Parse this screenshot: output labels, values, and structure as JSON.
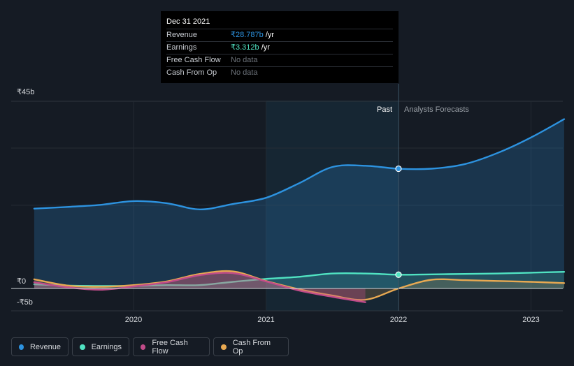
{
  "chart_data": {
    "type": "area",
    "title": "",
    "currency": "₹",
    "x_ticks": [
      "2020",
      "2021",
      "2022",
      "2023"
    ],
    "y_ticks": [
      "₹45b",
      "₹0",
      "-₹5b"
    ],
    "y_tick_values": [
      45,
      0,
      -5
    ],
    "ylim": [
      -5,
      45
    ],
    "past_label": "Past",
    "forecast_label": "Analysts Forecasts",
    "past_end": 2022.0,
    "highlight_start": 2021.0,
    "series": [
      {
        "name": "Revenue",
        "color": "#2d93e0",
        "x": [
          2019.25,
          2019.5,
          2019.75,
          2020.0,
          2020.25,
          2020.5,
          2020.75,
          2021.0,
          2021.25,
          2021.5,
          2021.75,
          2022.0,
          2022.25,
          2022.5,
          2022.75,
          2023.0,
          2023.25
        ],
        "values": [
          19.2,
          19.6,
          20.1,
          21.0,
          20.5,
          19.0,
          20.3,
          21.8,
          25.3,
          29.2,
          29.5,
          28.787,
          28.8,
          29.9,
          32.6,
          36.3,
          40.7
        ]
      },
      {
        "name": "Earnings",
        "color": "#50e3c2",
        "x": [
          2019.25,
          2019.5,
          2019.75,
          2020.0,
          2020.25,
          2020.5,
          2020.75,
          2021.0,
          2021.25,
          2021.5,
          2021.75,
          2022.0,
          2022.25,
          2022.5,
          2022.75,
          2023.0,
          2023.25
        ],
        "values": [
          1.0,
          0.7,
          0.6,
          0.6,
          0.8,
          0.8,
          1.6,
          2.3,
          2.8,
          3.6,
          3.6,
          3.312,
          3.4,
          3.5,
          3.6,
          3.8,
          4.0
        ]
      },
      {
        "name": "Free Cash Flow",
        "color": "#c14c8a",
        "x": [
          2019.25,
          2019.5,
          2019.75,
          2020.0,
          2020.25,
          2020.5,
          2020.75,
          2021.0,
          2021.25,
          2021.5,
          2021.75
        ],
        "values": [
          1.5,
          0.3,
          -0.3,
          0.5,
          1.5,
          3.2,
          3.7,
          1.7,
          -0.5,
          -2.0,
          -3.3
        ]
      },
      {
        "name": "Cash From Op",
        "color": "#e8a952",
        "x": [
          2019.25,
          2019.5,
          2019.75,
          2020.0,
          2020.25,
          2020.5,
          2020.75,
          2021.0,
          2021.25,
          2021.5,
          2021.75,
          2022.0,
          2022.25,
          2022.5,
          2022.75,
          2023.0,
          2023.25
        ],
        "values": [
          2.2,
          0.7,
          0.4,
          0.8,
          1.7,
          3.5,
          4.1,
          1.8,
          -0.2,
          -1.7,
          -2.7,
          0.0,
          2.1,
          2.0,
          1.8,
          1.6,
          1.3
        ]
      }
    ],
    "markers": [
      {
        "series": "Revenue",
        "x": 2022.0,
        "value": 28.787
      },
      {
        "series": "Earnings",
        "x": 2022.0,
        "value": 3.312
      }
    ]
  },
  "tooltip": {
    "date": "Dec 31 2021",
    "rows": [
      {
        "label": "Revenue",
        "value": "₹28.787b",
        "unit": " /yr",
        "color": "#2d93e0"
      },
      {
        "label": "Earnings",
        "value": "₹3.312b",
        "unit": " /yr",
        "color": "#50e3c2"
      },
      {
        "label": "Free Cash Flow",
        "value": "No data",
        "unit": "",
        "color": "#6d737b"
      },
      {
        "label": "Cash From Op",
        "value": "No data",
        "unit": "",
        "color": "#6d737b"
      }
    ]
  },
  "legend": [
    {
      "label": "Revenue",
      "color": "#2d93e0"
    },
    {
      "label": "Earnings",
      "color": "#50e3c2"
    },
    {
      "label": "Free Cash Flow",
      "color": "#c14c8a"
    },
    {
      "label": "Cash From Op",
      "color": "#e8a952"
    }
  ]
}
